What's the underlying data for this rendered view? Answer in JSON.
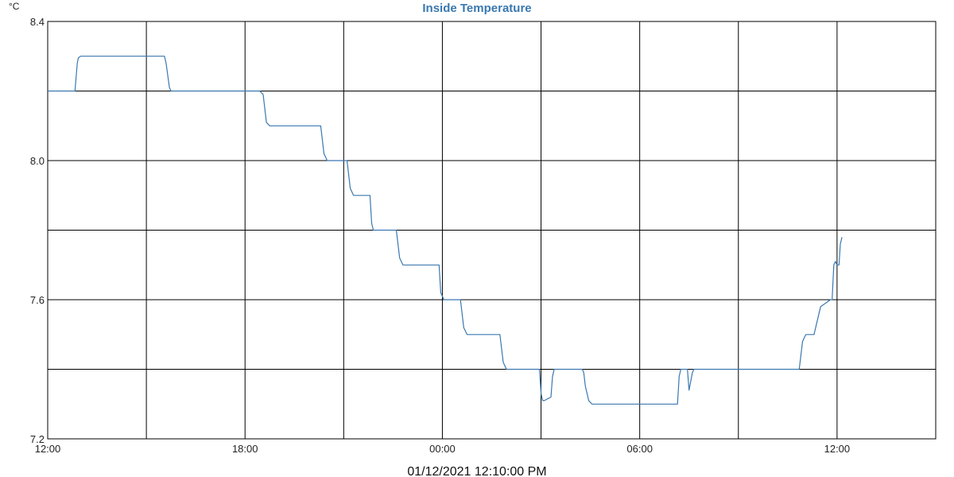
{
  "chart_data": {
    "type": "line",
    "title": "Inside Temperature",
    "y_unit": "°C",
    "xlabel": "",
    "ylabel": "",
    "footer": "01/12/2021 12:10:00 PM",
    "x_axis_unit": "hours",
    "xlim": [
      12,
      39
    ],
    "ylim": [
      7.2,
      8.4
    ],
    "x_ticks": [
      {
        "value": 12,
        "label": "12:00"
      },
      {
        "value": 18,
        "label": "18:00"
      },
      {
        "value": 24,
        "label": "00:00"
      },
      {
        "value": 30,
        "label": "06:00"
      },
      {
        "value": 36,
        "label": "12:00"
      }
    ],
    "x_gridlines": [
      12,
      15,
      18,
      21,
      24,
      27,
      30,
      33,
      36,
      39
    ],
    "y_ticks": [
      {
        "value": 7.2,
        "label": "7.2"
      },
      {
        "value": 7.6,
        "label": "7.6"
      },
      {
        "value": 8.0,
        "label": "8.0"
      },
      {
        "value": 8.4,
        "label": "8.4"
      }
    ],
    "y_gridlines": [
      7.2,
      7.4,
      7.6,
      7.8,
      8.0,
      8.2,
      8.4
    ],
    "grid": true,
    "colors": {
      "line": "#3a78b0",
      "title": "#3a78b0",
      "grid": "#000000"
    },
    "series": [
      {
        "x": [
          12.0,
          12.83,
          12.9,
          12.93,
          13.0,
          15.55,
          15.6,
          15.7,
          15.75,
          18.45,
          18.55,
          18.65,
          18.75,
          20.3,
          20.4,
          20.5,
          21.1,
          21.2,
          21.3,
          21.8,
          21.85,
          21.9,
          22.6,
          22.7,
          22.8,
          23.9,
          23.95,
          24.05,
          24.55,
          24.65,
          24.75,
          25.75,
          25.85,
          25.95,
          26.95,
          27.0,
          27.05,
          27.1,
          27.3,
          27.35,
          27.4,
          28.25,
          28.3,
          28.35,
          28.4,
          28.45,
          28.55,
          29.3,
          30.0,
          30.8,
          31.15,
          31.2,
          31.25,
          31.45,
          31.5,
          31.6,
          31.65,
          32.0,
          33.5,
          33.9,
          34.3,
          34.7,
          34.85,
          34.95,
          35.05,
          35.3,
          35.5,
          35.8,
          35.85,
          35.9,
          35.95,
          36.0,
          36.03,
          36.06,
          36.1,
          36.15
        ],
        "y": [
          8.2,
          8.2,
          8.28,
          8.295,
          8.3,
          8.3,
          8.28,
          8.21,
          8.2,
          8.2,
          8.19,
          8.11,
          8.1,
          8.1,
          8.02,
          8.0,
          8.0,
          7.92,
          7.9,
          7.9,
          7.82,
          7.8,
          7.8,
          7.72,
          7.7,
          7.7,
          7.62,
          7.6,
          7.6,
          7.52,
          7.5,
          7.5,
          7.42,
          7.4,
          7.4,
          7.33,
          7.31,
          7.31,
          7.32,
          7.38,
          7.4,
          7.4,
          7.39,
          7.35,
          7.33,
          7.31,
          7.3,
          7.3,
          7.3,
          7.3,
          7.3,
          7.38,
          7.4,
          7.4,
          7.34,
          7.39,
          7.4,
          7.4,
          7.4,
          7.4,
          7.4,
          7.4,
          7.4,
          7.48,
          7.5,
          7.5,
          7.58,
          7.6,
          7.6,
          7.7,
          7.71,
          7.7,
          7.7,
          7.7,
          7.76,
          7.78
        ]
      }
    ]
  }
}
